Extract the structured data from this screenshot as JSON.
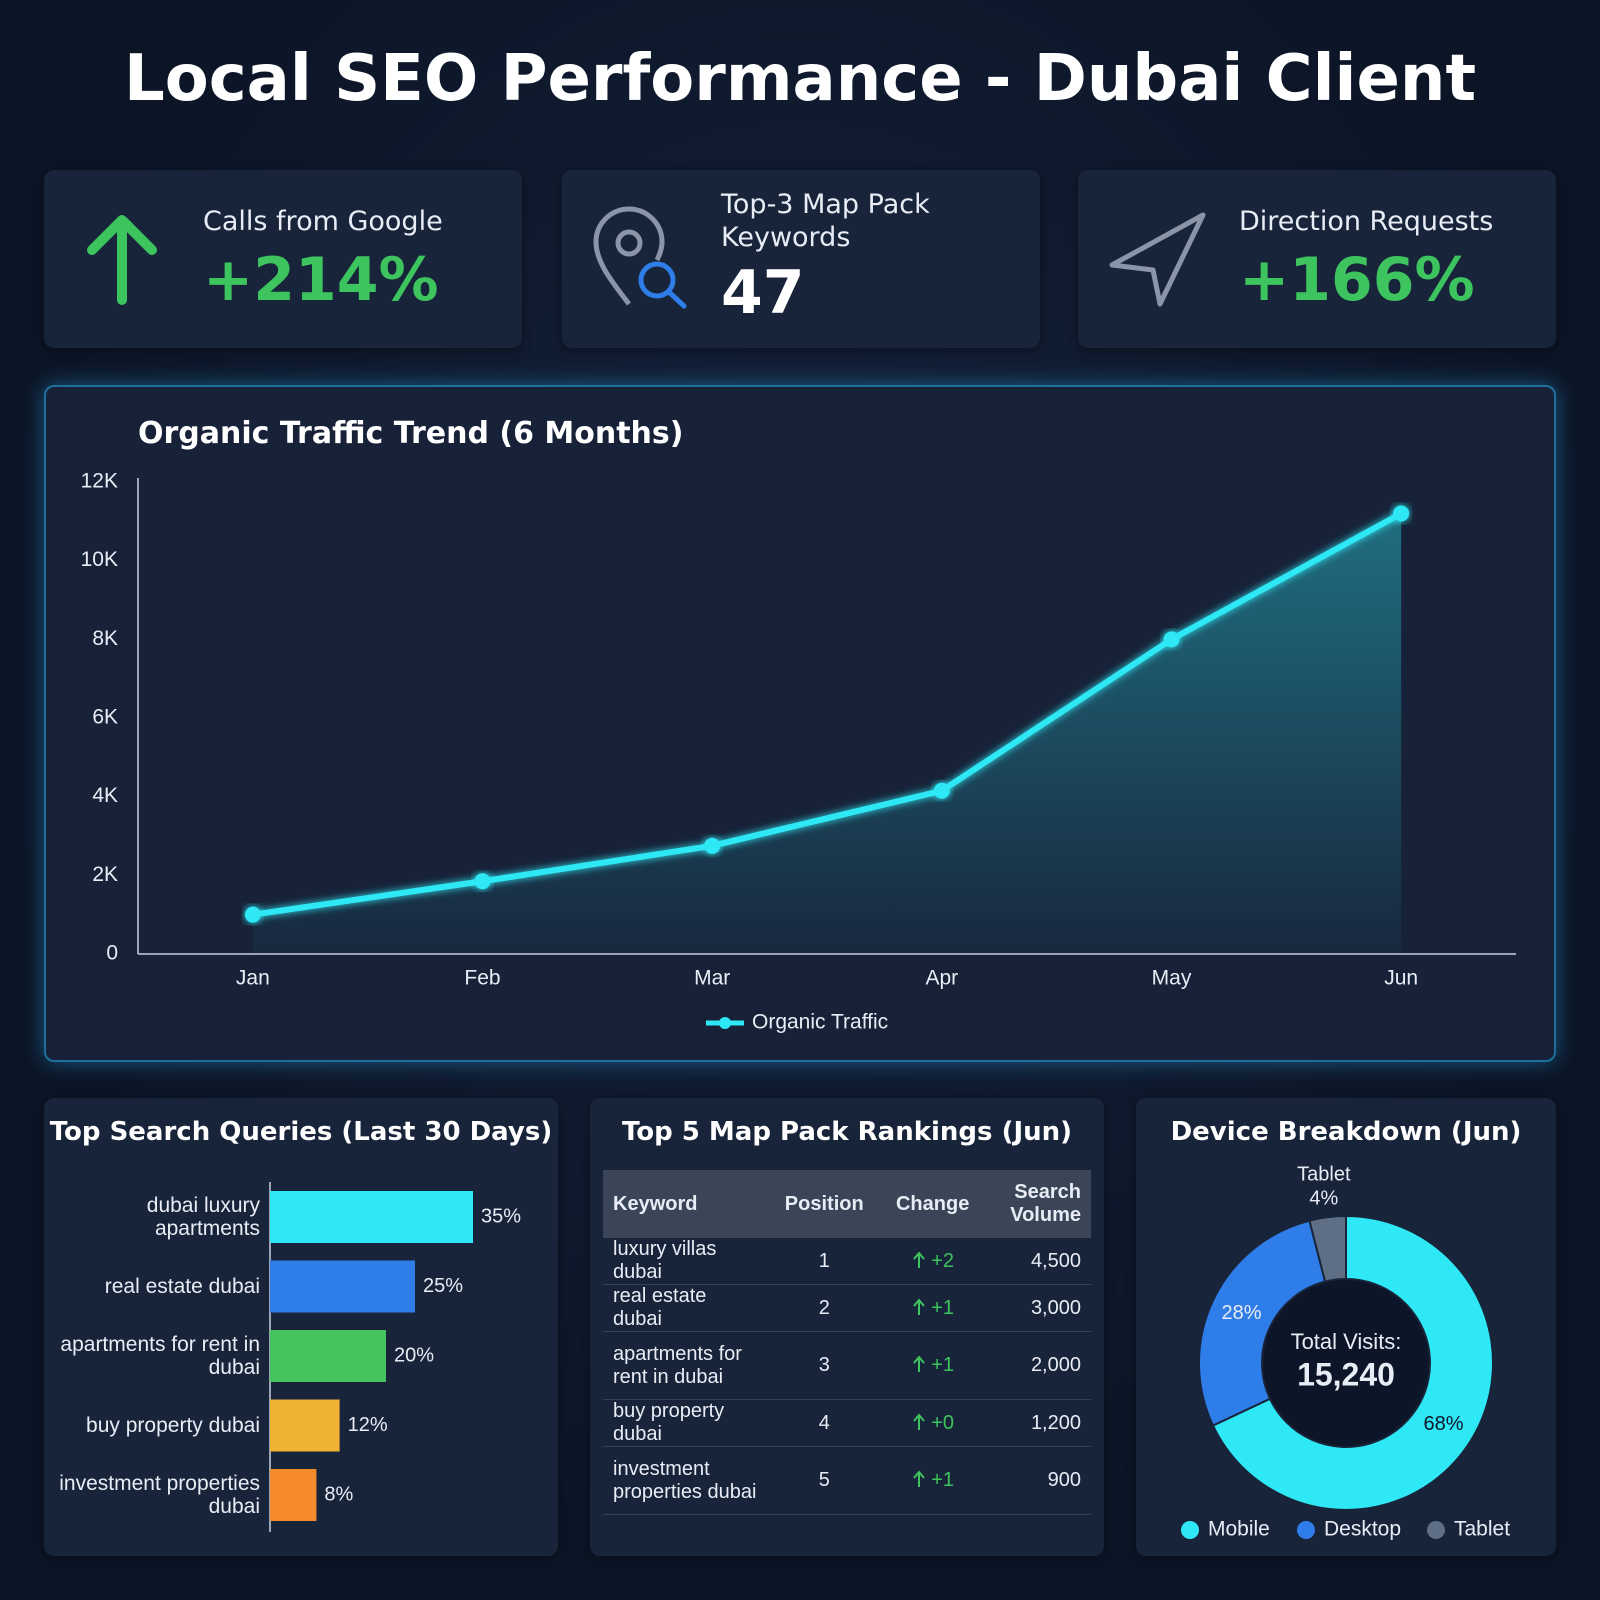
{
  "title": "Local SEO Performance - Dubai Client",
  "kpis": [
    {
      "label": "Calls from Google",
      "value": "+214%"
    },
    {
      "label": "Top-3 Map Pack Keywords",
      "value": "47"
    },
    {
      "label": "Direction Requests",
      "value": "+166%"
    }
  ],
  "chart_data": [
    {
      "type": "line",
      "title": "Organic Traffic Trend (6 Months)",
      "categories": [
        "Jan",
        "Feb",
        "Mar",
        "Apr",
        "May",
        "Jun"
      ],
      "series": [
        {
          "name": "Organic Traffic",
          "color": "#2ee8f5",
          "values": [
            1000,
            1850,
            2750,
            4150,
            8000,
            11200
          ]
        }
      ],
      "ylim": [
        0,
        12000
      ],
      "yticks": [
        0,
        {
          "value": 2000,
          "label": "2K"
        },
        {
          "value": 4000,
          "label": "4K"
        },
        {
          "value": 6000,
          "label": "6K"
        },
        {
          "value": 8000,
          "label": "8K"
        },
        {
          "value": 10000,
          "label": "10K"
        },
        {
          "value": 12000,
          "label": "12K"
        }
      ],
      "area": true,
      "legend": "bottom"
    },
    {
      "type": "bar",
      "orientation": "horizontal",
      "title": "Top Search Queries (Last 30 Days)",
      "categories": [
        "dubai luxury apartments",
        "real estate dubai",
        "apartments for rent in dubai",
        "buy property dubai",
        "investment properties dubai"
      ],
      "values": [
        35,
        25,
        20,
        12,
        8
      ],
      "value_labels": [
        "35%",
        "25%",
        "20%",
        "12%",
        "8%"
      ],
      "colors": [
        "#2ee8f5",
        "#2f7de8",
        "#45c35f",
        "#f0b232",
        "#f58a2a"
      ]
    },
    {
      "type": "pie",
      "donut": true,
      "title": "Device Breakdown (Jun)",
      "categories": [
        "Mobile",
        "Desktop",
        "Tablet"
      ],
      "values": [
        68,
        28,
        4
      ],
      "value_labels": [
        "68%",
        "28%",
        "4%"
      ],
      "colors": [
        "#2ee8f5",
        "#2f7de8",
        "#5d6e85"
      ],
      "center_label": "Total Visits:",
      "center_value": "15,240",
      "legend": "bottom"
    }
  ],
  "table": {
    "title": "Top 5 Map Pack Rankings (Jun)",
    "columns": [
      "Keyword",
      "Position",
      "Change",
      "Search Volume"
    ],
    "rows": [
      [
        "luxury villas dubai",
        "1",
        "+2",
        "4,500"
      ],
      [
        "real estate dubai",
        "2",
        "+1",
        "3,000"
      ],
      [
        "apartments for rent in dubai",
        "3",
        "+1",
        "2,000"
      ],
      [
        "buy property dubai",
        "4",
        "+0",
        "1,200"
      ],
      [
        "investment properties dubai",
        "5",
        "+1",
        "900"
      ]
    ]
  }
}
